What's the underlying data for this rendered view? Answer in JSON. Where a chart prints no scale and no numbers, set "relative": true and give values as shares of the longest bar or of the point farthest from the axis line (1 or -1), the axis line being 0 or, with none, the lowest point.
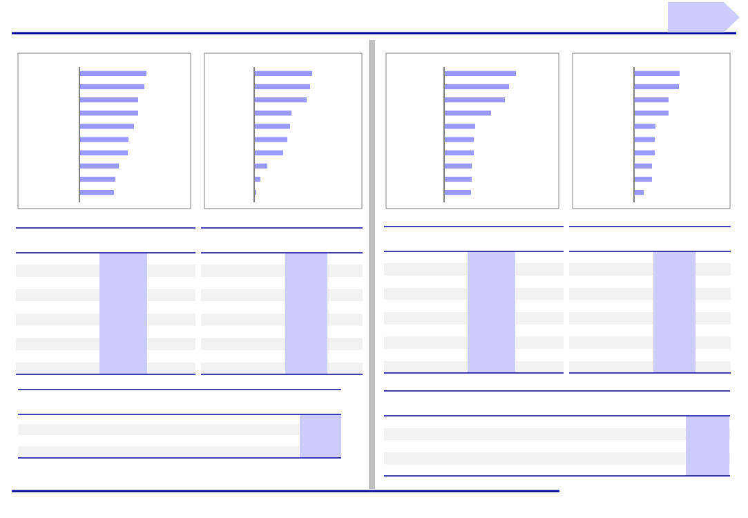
{
  "chart_data": [
    {
      "type": "bar",
      "orientation": "horizontal",
      "relative": true,
      "categories": [
        null,
        null,
        null,
        null,
        null,
        null,
        null,
        null,
        null,
        null
      ],
      "series": [
        {
          "color": "#9999ff",
          "values": [
            1,
            0.969,
            0.876,
            0.876,
            0.814,
            0.732,
            0.722,
            0.588,
            0.536,
            0.515
          ]
        }
      ]
    },
    {
      "type": "bar",
      "orientation": "horizontal",
      "relative": true,
      "categories": [
        null,
        null,
        null,
        null,
        null,
        null,
        null,
        null,
        null,
        null
      ],
      "series": [
        {
          "color": "#9999ff",
          "values": [
            1,
            0.964,
            0.905,
            0.643,
            0.619,
            0.571,
            0.5,
            0.226,
            0.107,
            0.036
          ]
        }
      ]
    },
    {
      "type": "bar",
      "orientation": "horizontal",
      "relative": true,
      "categories": [
        null,
        null,
        null,
        null,
        null,
        null,
        null,
        null,
        null,
        null
      ],
      "series": [
        {
          "color": "#9999ff",
          "values": [
            1,
            0.904,
            0.846,
            0.654,
            0.433,
            0.413,
            0.413,
            0.385,
            0.385,
            0.375
          ]
        }
      ]
    },
    {
      "type": "bar",
      "orientation": "horizontal",
      "relative": true,
      "categories": [
        null,
        null,
        null,
        null,
        null,
        null,
        null,
        null,
        null,
        null
      ],
      "series": [
        {
          "color": "#9999ff",
          "values": [
            1,
            0.985,
            0.758,
            0.758,
            0.47,
            0.455,
            0.455,
            0.394,
            0.394,
            0.212
          ]
        }
      ]
    }
  ]
}
